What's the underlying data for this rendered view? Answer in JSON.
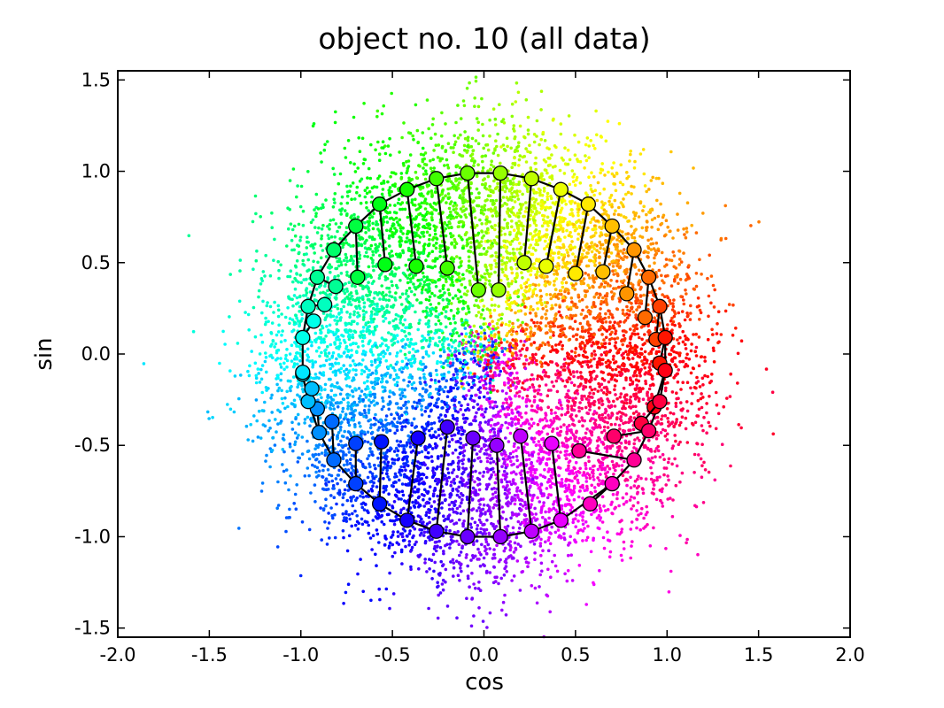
{
  "chart_data": {
    "type": "scatter",
    "title": "object no. 10 (all data)",
    "xlabel": "cos",
    "ylabel": "sin",
    "xlim": [
      -2.0,
      2.0
    ],
    "ylim": [
      -1.55,
      1.55
    ],
    "x_ticks": [
      -2.0,
      -1.5,
      -1.0,
      -0.5,
      0.0,
      0.5,
      1.0,
      1.5,
      2.0
    ],
    "x_tick_labels": [
      "-2.0",
      "-1.5",
      "-1.0",
      "-0.5",
      "0.0",
      "0.5",
      "1.0",
      "1.5",
      "2.0"
    ],
    "y_ticks": [
      -1.5,
      -1.0,
      -0.5,
      0.0,
      0.5,
      1.0,
      1.5
    ],
    "y_tick_labels": [
      "-1.5",
      "-1.0",
      "-0.5",
      "0.0",
      "0.5",
      "1.0",
      "1.5"
    ],
    "grid": false,
    "colormap": "hsv",
    "scatter_cloud": {
      "description_of_distribution": "dense hue-colored point cloud centered near origin, ring-like around unit circle",
      "point_count_estimate": 12000,
      "radius_mean": 0.9,
      "radius_spread": 0.22
    },
    "markers": [
      {
        "x": 0.09,
        "y": 0.99,
        "x_end": 0.08,
        "y_end": 0.35
      },
      {
        "x": 0.26,
        "y": 0.96,
        "x_end": 0.22,
        "y_end": 0.5
      },
      {
        "x": 0.42,
        "y": 0.9,
        "x_end": 0.34,
        "y_end": 0.48
      },
      {
        "x": 0.57,
        "y": 0.82,
        "x_end": 0.5,
        "y_end": 0.44
      },
      {
        "x": 0.7,
        "y": 0.7,
        "x_end": 0.65,
        "y_end": 0.45
      },
      {
        "x": 0.82,
        "y": 0.57,
        "x_end": 0.78,
        "y_end": 0.33
      },
      {
        "x": 0.9,
        "y": 0.42,
        "x_end": 0.88,
        "y_end": 0.2
      },
      {
        "x": 0.96,
        "y": 0.26,
        "x_end": 0.94,
        "y_end": 0.08
      },
      {
        "x": 0.99,
        "y": 0.09,
        "x_end": 0.96,
        "y_end": -0.05
      },
      {
        "x": 0.99,
        "y": -0.09,
        "x_end": 0.93,
        "y_end": -0.29
      },
      {
        "x": 0.96,
        "y": -0.26,
        "x_end": 0.86,
        "y_end": -0.38
      },
      {
        "x": 0.9,
        "y": -0.42,
        "x_end": 0.71,
        "y_end": -0.45
      },
      {
        "x": 0.82,
        "y": -0.58,
        "x_end": 0.52,
        "y_end": -0.53
      },
      {
        "x": 0.7,
        "y": -0.71,
        "x_end": 0.58,
        "y_end": -0.82
      },
      {
        "x": 0.42,
        "y": -0.91,
        "x_end": 0.37,
        "y_end": -0.49
      },
      {
        "x": 0.26,
        "y": -0.97,
        "x_end": 0.2,
        "y_end": -0.45
      },
      {
        "x": 0.09,
        "y": -1.0,
        "x_end": 0.07,
        "y_end": -0.5
      },
      {
        "x": -0.09,
        "y": -1.0,
        "x_end": -0.06,
        "y_end": -0.46
      },
      {
        "x": -0.26,
        "y": -0.97,
        "x_end": -0.2,
        "y_end": -0.4
      },
      {
        "x": -0.42,
        "y": -0.91,
        "x_end": -0.36,
        "y_end": -0.46
      },
      {
        "x": -0.57,
        "y": -0.82,
        "x_end": -0.56,
        "y_end": -0.48
      },
      {
        "x": -0.7,
        "y": -0.71,
        "x_end": -0.7,
        "y_end": -0.49
      },
      {
        "x": -0.82,
        "y": -0.58,
        "x_end": -0.83,
        "y_end": -0.37
      },
      {
        "x": -0.9,
        "y": -0.43,
        "x_end": -0.91,
        "y_end": -0.3
      },
      {
        "x": -0.96,
        "y": -0.26,
        "x_end": -0.94,
        "y_end": -0.19
      },
      {
        "x": -0.99,
        "y": -0.11,
        "x_end": -0.99,
        "y_end": -0.1
      },
      {
        "x": -0.99,
        "y": 0.09,
        "x_end": -0.93,
        "y_end": 0.18
      },
      {
        "x": -0.96,
        "y": 0.26,
        "x_end": -0.87,
        "y_end": 0.27
      },
      {
        "x": -0.91,
        "y": 0.42,
        "x_end": -0.81,
        "y_end": 0.37
      },
      {
        "x": -0.82,
        "y": 0.57,
        "x_end": -0.82,
        "y_end": 0.57
      },
      {
        "x": -0.7,
        "y": 0.7,
        "x_end": -0.69,
        "y_end": 0.42
      },
      {
        "x": -0.57,
        "y": 0.82,
        "x_end": -0.54,
        "y_end": 0.49
      },
      {
        "x": -0.42,
        "y": 0.9,
        "x_end": -0.37,
        "y_end": 0.48
      },
      {
        "x": -0.26,
        "y": 0.96,
        "x_end": -0.2,
        "y_end": 0.47
      },
      {
        "x": -0.09,
        "y": 0.99,
        "x_end": -0.03,
        "y_end": 0.35
      }
    ]
  }
}
